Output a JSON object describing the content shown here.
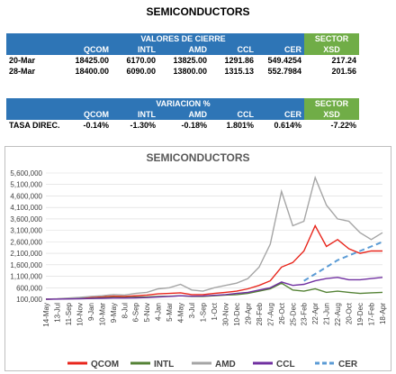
{
  "header": {
    "title": "SEMICONDUCTORS"
  },
  "table1": {
    "group": "VALORES DE CIERRE",
    "sector": "SECTOR",
    "columns": [
      "QCOM",
      "INTL",
      "AMD",
      "CCL",
      "CER",
      "XSD"
    ],
    "rows": [
      [
        "20-Mar",
        "18425.00",
        "6170.00",
        "13825.00",
        "1291.86",
        "549.4254",
        "217.24"
      ],
      [
        "28-Mar",
        "18400.00",
        "6090.00",
        "13800.00",
        "1315.13",
        "552.7984",
        "201.56"
      ]
    ]
  },
  "table2": {
    "group": "VARIACION %",
    "sector": "SECTOR",
    "columns": [
      "QCOM",
      "INTL",
      "AMD",
      "CCL",
      "CER",
      "XSD"
    ],
    "rows": [
      [
        "TASA DIREC.",
        "-0.14%",
        "-1.30%",
        "-0.18%",
        "1.801%",
        "0.614%",
        "-7.22%"
      ]
    ]
  },
  "chart_data": {
    "type": "line",
    "title": "SEMICONDUCTORS",
    "categories": [
      "14-May",
      "13-Jul",
      "11-Sep",
      "10-Nov",
      "9-Jan",
      "10-Mar",
      "9-May",
      "8-Jul",
      "6-Sep",
      "5-Nov",
      "4-Jan",
      "5-Mar",
      "4-May",
      "3-Jul",
      "1-Sep",
      "1-Oct",
      "30-Nov",
      "10-Dec",
      "29-Apr",
      "28-Feb",
      "27-Aug",
      "26-Oct",
      "25-Dec",
      "23-Feb",
      "22-Apr",
      "21-Jun",
      "22-Aug",
      "20-Oct",
      "19-Dec",
      "17-Feb",
      "18-Apr"
    ],
    "ylim": [
      100000,
      5600000
    ],
    "yticks": [
      {
        "value": 100000,
        "label": "100,000"
      },
      {
        "value": 600000,
        "label": "600,000"
      },
      {
        "value": 1100000,
        "label": "1,100,000"
      },
      {
        "value": 1600000,
        "label": "1,600,000"
      },
      {
        "value": 2100000,
        "label": "2,100,000"
      },
      {
        "value": 2600000,
        "label": "2,600,000"
      },
      {
        "value": 3100000,
        "label": "3,100,000"
      },
      {
        "value": 3600000,
        "label": "3,600,000"
      },
      {
        "value": 4100000,
        "label": "4,100,000"
      },
      {
        "value": 4600000,
        "label": "4,600,000"
      },
      {
        "value": 5100000,
        "label": "5,100,000"
      },
      {
        "value": 5600000,
        "label": "5,600,000"
      }
    ],
    "grid": true,
    "series": [
      {
        "name": "QCOM",
        "color": "#e8261c",
        "values": [
          100000,
          110000,
          130000,
          150000,
          170000,
          200000,
          230000,
          220000,
          250000,
          280000,
          330000,
          350000,
          380000,
          300000,
          300000,
          350000,
          400000,
          450000,
          550000,
          700000,
          900000,
          1500000,
          1700000,
          2200000,
          3300000,
          2400000,
          2700000,
          2300000,
          2100000,
          2200000,
          2200000
        ]
      },
      {
        "name": "INTL",
        "color": "#548235",
        "values": [
          100000,
          110000,
          120000,
          130000,
          140000,
          160000,
          180000,
          170000,
          190000,
          200000,
          220000,
          230000,
          250000,
          220000,
          220000,
          250000,
          280000,
          300000,
          350000,
          450000,
          550000,
          800000,
          500000,
          450000,
          550000,
          400000,
          450000,
          400000,
          350000,
          380000,
          400000
        ]
      },
      {
        "name": "AMD",
        "color": "#a5a5a5",
        "values": [
          100000,
          120000,
          150000,
          180000,
          220000,
          250000,
          300000,
          280000,
          350000,
          400000,
          550000,
          600000,
          750000,
          500000,
          450000,
          600000,
          700000,
          800000,
          1000000,
          1500000,
          2500000,
          4800000,
          3300000,
          3500000,
          5400000,
          4200000,
          3600000,
          3500000,
          3000000,
          2700000,
          3000000
        ]
      },
      {
        "name": "CCL",
        "color": "#7030a0",
        "values": [
          100000,
          105000,
          110000,
          120000,
          130000,
          140000,
          150000,
          150000,
          160000,
          170000,
          200000,
          220000,
          250000,
          230000,
          240000,
          270000,
          300000,
          350000,
          400000,
          500000,
          600000,
          850000,
          700000,
          750000,
          900000,
          1000000,
          1050000,
          950000,
          950000,
          1000000,
          1050000
        ]
      },
      {
        "name": "CER",
        "color": "#5b9bd5",
        "dashed": true,
        "values": [
          null,
          null,
          null,
          null,
          null,
          null,
          null,
          null,
          null,
          null,
          null,
          null,
          null,
          null,
          null,
          null,
          null,
          null,
          null,
          null,
          null,
          null,
          null,
          900000,
          1200000,
          1500000,
          1800000,
          2000000,
          2200000,
          2400000,
          2600000
        ]
      }
    ]
  }
}
